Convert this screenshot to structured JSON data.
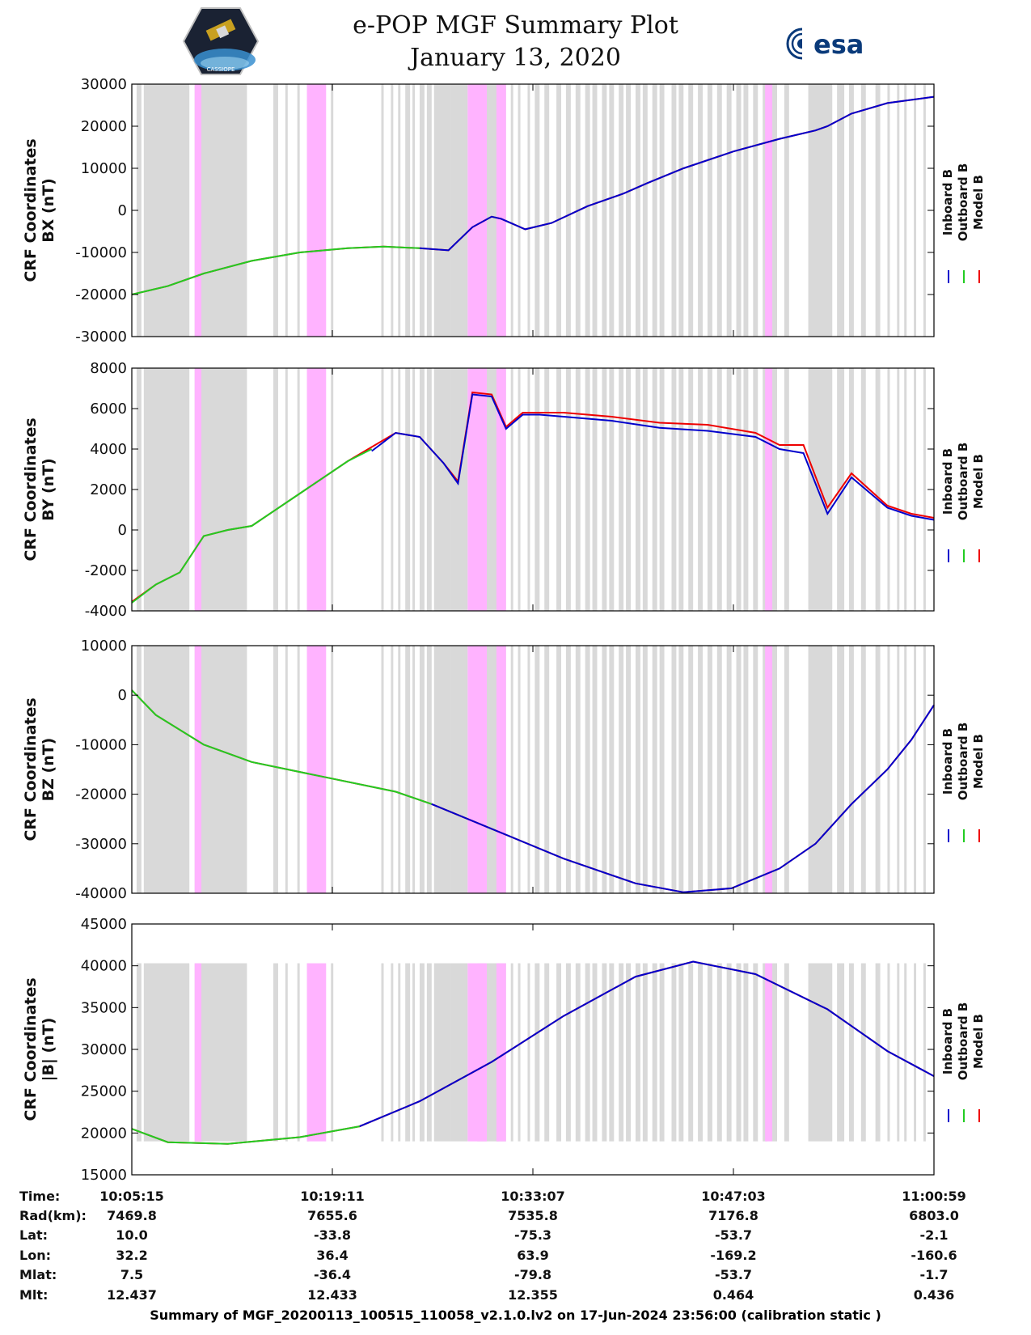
{
  "header": {
    "title": "e-POP MGF Summary Plot",
    "date": "January 13, 2020",
    "esa_logo_text": "esa",
    "left_logo_text": "CASSIOPE"
  },
  "legend": {
    "items": [
      {
        "label": "Inboard B",
        "color": "#0000cc"
      },
      {
        "label": "Outboard B",
        "color": "#22cc22"
      },
      {
        "label": "Model B",
        "color": "#ee0000"
      }
    ]
  },
  "colors": {
    "gray_band": "#d9d9d9",
    "magenta_band": "#ffb3ff",
    "inboard": "#0000cc",
    "outboard": "#22cc22",
    "model": "#ee0000"
  },
  "chart_data": [
    {
      "type": "line",
      "ylabel_line1": "CRF Coordinates",
      "ylabel_line2": "BX (nT)",
      "ylim": [
        -30000,
        30000
      ],
      "yticks": [
        30000,
        20000,
        10000,
        0,
        -10000,
        -20000,
        -30000
      ],
      "x_range_sec": [
        0,
        3344
      ],
      "x_tick_secs": [
        0,
        836,
        1672,
        2508,
        3344
      ],
      "x_tick_labels": [
        "10:05:15",
        "10:19:11",
        "10:33:07",
        "10:47:03",
        "11:00:59"
      ],
      "band_ylim": [
        -30000,
        30000
      ],
      "series": [
        {
          "name": "Model B",
          "x": [
            0,
            150,
            300,
            500,
            700,
            900,
            1050,
            1200,
            1320,
            1420,
            1500,
            1540,
            1640,
            1750,
            1900,
            2050,
            2150,
            2300,
            2508,
            2700,
            2850,
            2900,
            3000,
            3150,
            3344
          ],
          "y": [
            -20000,
            -18000,
            -15000,
            -12000,
            -10000,
            -9000,
            -8600,
            -9000,
            -9500,
            -4000,
            -1500,
            -2000,
            -4500,
            -3000,
            1000,
            4000,
            6500,
            10000,
            14000,
            17000,
            19000,
            20000,
            23000,
            25500,
            27000
          ]
        },
        {
          "name": "Outboard B",
          "x": [
            0,
            150,
            300,
            500,
            700,
            900,
            1050,
            1200
          ],
          "y": [
            -20000,
            -18000,
            -15000,
            -12000,
            -10000,
            -9000,
            -8600,
            -9000
          ]
        },
        {
          "name": "Inboard B",
          "x": [
            1200,
            1320,
            1420,
            1500,
            1540,
            1640,
            1750,
            1900,
            2050,
            2150,
            2300,
            2508,
            2700,
            2850,
            2900,
            3000,
            3150,
            3344
          ],
          "y": [
            -9000,
            -9500,
            -4000,
            -1500,
            -2000,
            -4500,
            -3000,
            1000,
            4000,
            6500,
            10000,
            14000,
            17000,
            19000,
            20000,
            23000,
            25500,
            27000
          ]
        }
      ]
    },
    {
      "type": "line",
      "ylabel_line1": "CRF Coordinates",
      "ylabel_line2": "BY (nT)",
      "ylim": [
        -4000,
        8000
      ],
      "yticks": [
        8000,
        6000,
        4000,
        2000,
        0,
        -2000,
        -4000
      ],
      "x_range_sec": [
        0,
        3344
      ],
      "x_tick_secs": [
        0,
        836,
        1672,
        2508,
        3344
      ],
      "x_tick_labels": [
        "10:05:15",
        "10:19:11",
        "10:33:07",
        "10:47:03",
        "11:00:59"
      ],
      "band_ylim": [
        -4000,
        8000
      ],
      "series": [
        {
          "name": "Model B",
          "x": [
            0,
            100,
            200,
            250,
            300,
            400,
            500,
            700,
            900,
            1100,
            1200,
            1300,
            1360,
            1420,
            1500,
            1560,
            1630,
            1700,
            1800,
            2000,
            2200,
            2400,
            2600,
            2700,
            2800,
            2900,
            3000,
            3150,
            3250,
            3344
          ],
          "y": [
            -3550,
            -2700,
            -2100,
            -1200,
            -300,
            0,
            200,
            1800,
            3400,
            4800,
            4600,
            3300,
            2400,
            6800,
            6700,
            5100,
            5800,
            5800,
            5800,
            5600,
            5300,
            5200,
            4800,
            4200,
            4200,
            1100,
            2800,
            1200,
            800,
            600
          ]
        },
        {
          "name": "Inboard B",
          "x": [
            1000,
            1100,
            1200,
            1300,
            1360,
            1420,
            1500,
            1560,
            1630,
            1700,
            1800,
            2000,
            2200,
            2400,
            2600,
            2700,
            2800,
            2900,
            3000,
            3150,
            3250,
            3344
          ],
          "y": [
            3900,
            4800,
            4600,
            3300,
            2300,
            6700,
            6600,
            5000,
            5700,
            5700,
            5600,
            5400,
            5050,
            4900,
            4600,
            4000,
            3800,
            800,
            2600,
            1100,
            700,
            500
          ]
        },
        {
          "name": "Outboard B",
          "x": [
            0,
            100,
            200,
            250,
            300,
            400,
            500,
            700,
            900,
            1000
          ],
          "y": [
            -3600,
            -2700,
            -2100,
            -1200,
            -300,
            0,
            200,
            1800,
            3400,
            4000
          ]
        }
      ]
    },
    {
      "type": "line",
      "ylabel_line1": "CRF Coordinates",
      "ylabel_line2": "BZ (nT)",
      "ylim": [
        -40000,
        10000
      ],
      "yticks": [
        10000,
        0,
        -10000,
        -20000,
        -30000,
        -40000
      ],
      "x_range_sec": [
        0,
        3344
      ],
      "x_tick_secs": [
        0,
        836,
        1672,
        2508,
        3344
      ],
      "x_tick_labels": [
        "10:05:15",
        "10:19:11",
        "10:33:07",
        "10:47:03",
        "11:00:59"
      ],
      "band_ylim": [
        -40000,
        10000
      ],
      "series": [
        {
          "name": "Model B",
          "x": [
            0,
            100,
            300,
            500,
            800,
            1100,
            1250,
            1500,
            1800,
            2100,
            2300,
            2500,
            2700,
            2850,
            3000,
            3150,
            3250,
            3344
          ],
          "y": [
            1000,
            -4000,
            -10000,
            -13500,
            -16500,
            -19500,
            -22000,
            -27000,
            -33000,
            -38000,
            -39800,
            -39000,
            -35000,
            -30000,
            -22000,
            -15000,
            -9000,
            -2000
          ]
        },
        {
          "name": "Outboard B",
          "x": [
            0,
            100,
            300,
            500,
            800,
            1100,
            1250
          ],
          "y": [
            1000,
            -4000,
            -10000,
            -13500,
            -16500,
            -19500,
            -22000
          ]
        },
        {
          "name": "Inboard B",
          "x": [
            1250,
            1500,
            1800,
            2100,
            2300,
            2500,
            2700,
            2850,
            3000,
            3150,
            3250,
            3344
          ],
          "y": [
            -22000,
            -27000,
            -33000,
            -38000,
            -39800,
            -39000,
            -35000,
            -30000,
            -22000,
            -15000,
            -9000,
            -2000
          ]
        }
      ]
    },
    {
      "type": "line",
      "ylabel_line1": "CRF Coordinates",
      "ylabel_line2": "|B| (nT)",
      "ylim": [
        15000,
        45000
      ],
      "yticks": [
        45000,
        40000,
        35000,
        30000,
        25000,
        20000,
        15000
      ],
      "x_range_sec": [
        0,
        3344
      ],
      "x_tick_secs": [
        0,
        836,
        1672,
        2508,
        3344
      ],
      "x_tick_labels": [
        "10:05:15",
        "10:19:11",
        "10:33:07",
        "10:47:03",
        "11:00:59"
      ],
      "band_ylim": [
        19000,
        40300
      ],
      "series": [
        {
          "name": "Model B",
          "x": [
            0,
            150,
            400,
            700,
            950,
            1200,
            1500,
            1800,
            2100,
            2340,
            2600,
            2900,
            3150,
            3344
          ],
          "y": [
            20500,
            18900,
            18700,
            19500,
            20800,
            23800,
            28500,
            34000,
            38700,
            40500,
            39000,
            34800,
            29800,
            26800
          ]
        },
        {
          "name": "Outboard B",
          "x": [
            0,
            150,
            400,
            700,
            950
          ],
          "y": [
            20500,
            18900,
            18700,
            19500,
            20800
          ]
        },
        {
          "name": "Inboard B",
          "x": [
            950,
            1200,
            1500,
            1800,
            2100,
            2340,
            2600,
            2900,
            3150,
            3344
          ],
          "y": [
            20800,
            23800,
            28500,
            34000,
            38700,
            40500,
            39000,
            34800,
            29800,
            26800
          ]
        }
      ]
    }
  ],
  "bands": {
    "gray": [
      [
        20,
        40
      ],
      [
        50,
        240
      ],
      [
        262,
        480
      ],
      [
        590,
        610
      ],
      [
        640,
        650
      ],
      [
        690,
        700
      ],
      [
        730,
        740
      ],
      [
        830,
        840
      ],
      [
        1040,
        1050
      ],
      [
        1080,
        1090
      ],
      [
        1110,
        1120
      ],
      [
        1140,
        1160
      ],
      [
        1170,
        1180
      ],
      [
        1200,
        1220
      ],
      [
        1230,
        1250
      ],
      [
        1260,
        1330
      ],
      [
        1330,
        1400
      ],
      [
        1440,
        1490
      ],
      [
        1490,
        1560
      ],
      [
        1520,
        1530
      ],
      [
        1580,
        1590
      ],
      [
        1610,
        1620
      ],
      [
        1650,
        1660
      ],
      [
        1680,
        1700
      ],
      [
        1720,
        1740
      ],
      [
        1770,
        1790
      ],
      [
        1810,
        1830
      ],
      [
        1850,
        1870
      ],
      [
        1890,
        1910
      ],
      [
        1920,
        1940
      ],
      [
        1960,
        1980
      ],
      [
        1990,
        2010
      ],
      [
        2030,
        2050
      ],
      [
        2060,
        2080
      ],
      [
        2100,
        2120
      ],
      [
        2130,
        2150
      ],
      [
        2170,
        2190
      ],
      [
        2200,
        2220
      ],
      [
        2250,
        2270
      ],
      [
        2280,
        2300
      ],
      [
        2320,
        2340
      ],
      [
        2360,
        2380
      ],
      [
        2400,
        2420
      ],
      [
        2440,
        2460
      ],
      [
        2480,
        2500
      ],
      [
        2520,
        2540
      ],
      [
        2550,
        2570
      ],
      [
        2590,
        2610
      ],
      [
        2630,
        2650
      ],
      [
        2670,
        2690
      ],
      [
        2720,
        2740
      ],
      [
        2820,
        2920
      ],
      [
        2940,
        2970
      ],
      [
        2990,
        3010
      ],
      [
        3040,
        3060
      ],
      [
        3100,
        3120
      ],
      [
        3150,
        3160
      ],
      [
        3190,
        3200
      ],
      [
        3220,
        3230
      ],
      [
        3260,
        3270
      ],
      [
        3300,
        3310
      ]
    ],
    "magenta": [
      [
        262,
        290
      ],
      [
        730,
        810
      ],
      [
        1400,
        1480
      ],
      [
        1520,
        1560
      ],
      [
        2640,
        2670
      ]
    ]
  },
  "x_info": {
    "row_labels": [
      "Time:",
      "Rad(km):",
      "Lat:",
      "Lon:",
      "Mlat:",
      "Mlt:"
    ],
    "columns": [
      [
        "10:05:15",
        "7469.8",
        "10.0",
        "32.2",
        "7.5",
        "12.437"
      ],
      [
        "10:19:11",
        "7655.6",
        "-33.8",
        "36.4",
        "-36.4",
        "12.433"
      ],
      [
        "10:33:07",
        "7535.8",
        "-75.3",
        "63.9",
        "-79.8",
        "12.355"
      ],
      [
        "10:47:03",
        "7176.8",
        "-53.7",
        "-169.2",
        "-53.7",
        "0.464"
      ],
      [
        "11:00:59",
        "6803.0",
        "-2.1",
        "-160.6",
        "-1.7",
        "0.436"
      ]
    ]
  },
  "footer": "Summary of MGF_20200113_100515_110058_v2.1.0.lv2 on 17-Jun-2024 23:56:00 (calibration static )"
}
